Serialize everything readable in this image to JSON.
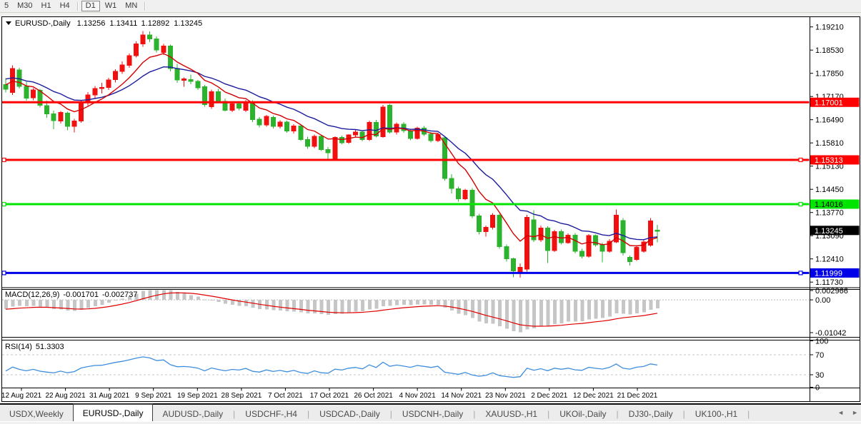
{
  "toolbar": {
    "groups": [
      [
        "5",
        "M30",
        "H1",
        "H4"
      ],
      [
        "D1",
        "W1",
        "MN"
      ]
    ],
    "active": "D1"
  },
  "header": {
    "dropdown_icon": "down-triangle",
    "symbol": "EURUSD-,Daily",
    "open": "1.13256",
    "high": "1.13411",
    "low": "1.12892",
    "close": "1.13245"
  },
  "chart_data": {
    "type": "candlestick",
    "title": "EURUSD-,Daily",
    "ylim": [
      1.11588,
      1.19497
    ],
    "up_color": "#F01010",
    "down_color": "#2DB22D",
    "ma_fast": {
      "period": 8,
      "color": "#D40000"
    },
    "ma_slow": {
      "period": 17,
      "color": "#1C1C9E"
    },
    "y_ticks": [
      "1.19210",
      "1.18530",
      "1.17850",
      "1.17170",
      "1.16490",
      "1.15810",
      "1.15130",
      "1.14450",
      "1.13770",
      "1.13090",
      "1.12410",
      "1.11730"
    ],
    "categories": [
      "12 Aug 2021",
      "22 Aug 2021",
      "31 Aug 2021",
      "9 Sep 2021",
      "19 Sep 2021",
      "28 Sep 2021",
      "7 Oct 2021",
      "17 Oct 2021",
      "26 Oct 2021",
      "4 Nov 2021",
      "14 Nov 2021",
      "23 Nov 2021",
      "2 Dec 2021",
      "12 Dec 2021",
      "21 Dec 2021"
    ],
    "hlines": [
      {
        "value": 1.17001,
        "label": "1.17001",
        "color": "#FE0000",
        "text_color": "#FFFFFF",
        "handles": false
      },
      {
        "value": 1.15313,
        "label": "1.15313",
        "color": "#FE0000",
        "text_color": "#FFFFFF",
        "handles": true
      },
      {
        "value": 1.14016,
        "label": "1.14016",
        "color": "#00E400",
        "text_color": "#000000",
        "handles": true
      },
      {
        "value": 1.11999,
        "label": "1.11999",
        "color": "#0000E8",
        "text_color": "#FFFFFF",
        "handles": true
      }
    ],
    "current_price": {
      "label": "1.13245",
      "value": 1.13245,
      "bg": "#000000",
      "text_color": "#FFFFFF"
    },
    "indicators": {
      "macd": {
        "name": "MACD(12,26,9)",
        "main_value": "-0.001701",
        "signal_value": "-0.002737",
        "axis_labels": [
          "0.002966",
          "0.00",
          "-0.01042"
        ],
        "axis_max": 0.002966,
        "axis_min": -0.01042,
        "bar_color": "#C6C6C6",
        "signal_color": "#E00000"
      },
      "rsi": {
        "name": "RSI(14)",
        "value": "51.3303",
        "axis_labels": [
          "100",
          "70",
          "30",
          "0"
        ],
        "levels": [
          70,
          30
        ],
        "line_color": "#3E8EDE"
      }
    },
    "ohlc": [
      [
        1.1752,
        1.1771,
        1.1729,
        1.1738
      ],
      [
        1.1729,
        1.1808,
        1.1722,
        1.1799
      ],
      [
        1.1795,
        1.1801,
        1.174,
        1.1747
      ],
      [
        1.1747,
        1.176,
        1.1705,
        1.1712
      ],
      [
        1.1713,
        1.1742,
        1.1706,
        1.1736
      ],
      [
        1.1735,
        1.1739,
        1.1685,
        1.1691
      ],
      [
        1.169,
        1.1705,
        1.1655,
        1.1666
      ],
      [
        1.1666,
        1.1676,
        1.1621,
        1.1646
      ],
      [
        1.1645,
        1.1675,
        1.1638,
        1.167
      ],
      [
        1.1668,
        1.1672,
        1.1618,
        1.1629
      ],
      [
        1.163,
        1.1652,
        1.1612,
        1.1645
      ],
      [
        1.1645,
        1.1705,
        1.164,
        1.1699
      ],
      [
        1.1699,
        1.173,
        1.169,
        1.1722
      ],
      [
        1.1722,
        1.1748,
        1.1711,
        1.174
      ],
      [
        1.174,
        1.1757,
        1.1726,
        1.1744
      ],
      [
        1.1744,
        1.1772,
        1.1736,
        1.1766
      ],
      [
        1.1766,
        1.1797,
        1.1758,
        1.1791
      ],
      [
        1.1791,
        1.182,
        1.1783,
        1.1809
      ],
      [
        1.1809,
        1.1843,
        1.1801,
        1.1837
      ],
      [
        1.1837,
        1.1879,
        1.1831,
        1.1871
      ],
      [
        1.1871,
        1.1909,
        1.1863,
        1.1897
      ],
      [
        1.1897,
        1.1908,
        1.1876,
        1.1886
      ],
      [
        1.1886,
        1.1893,
        1.1846,
        1.1853
      ],
      [
        1.1846,
        1.1871,
        1.1839,
        1.1865
      ],
      [
        1.1865,
        1.1869,
        1.1791,
        1.1799
      ],
      [
        1.1799,
        1.1813,
        1.1757,
        1.1765
      ],
      [
        1.1765,
        1.1773,
        1.1746,
        1.1769
      ],
      [
        1.1767,
        1.1781,
        1.1753,
        1.1761
      ],
      [
        1.1761,
        1.1766,
        1.1736,
        1.1743
      ],
      [
        1.1746,
        1.1751,
        1.1687,
        1.1693
      ],
      [
        1.1687,
        1.1737,
        1.1681,
        1.1731
      ],
      [
        1.1731,
        1.1739,
        1.1699,
        1.1703
      ],
      [
        1.1703,
        1.1711,
        1.1673,
        1.1677
      ],
      [
        1.1677,
        1.1701,
        1.1671,
        1.1695
      ],
      [
        1.1695,
        1.1701,
        1.1677,
        1.1683
      ],
      [
        1.1677,
        1.1707,
        1.1671,
        1.1702
      ],
      [
        1.1702,
        1.1706,
        1.1642,
        1.165
      ],
      [
        1.165,
        1.1657,
        1.1626,
        1.1634
      ],
      [
        1.1634,
        1.1663,
        1.1629,
        1.1659
      ],
      [
        1.1656,
        1.1661,
        1.1623,
        1.163
      ],
      [
        1.163,
        1.1647,
        1.1623,
        1.1642
      ],
      [
        1.1642,
        1.1646,
        1.1611,
        1.1616
      ],
      [
        1.1616,
        1.1636,
        1.1609,
        1.1631
      ],
      [
        1.1631,
        1.1634,
        1.1587,
        1.1591
      ],
      [
        1.1591,
        1.1599,
        1.1564,
        1.1571
      ],
      [
        1.1571,
        1.1605,
        1.1566,
        1.16
      ],
      [
        1.16,
        1.1603,
        1.1557,
        1.1562
      ],
      [
        1.1562,
        1.1569,
        1.1529,
        1.1552
      ],
      [
        1.1532,
        1.16,
        1.1528,
        1.1597
      ],
      [
        1.1597,
        1.1602,
        1.1577,
        1.1582
      ],
      [
        1.1582,
        1.1607,
        1.1578,
        1.1604
      ],
      [
        1.1604,
        1.1619,
        1.1598,
        1.1613
      ],
      [
        1.1613,
        1.1617,
        1.1586,
        1.1591
      ],
      [
        1.1591,
        1.1646,
        1.1587,
        1.1641
      ],
      [
        1.1641,
        1.1648,
        1.1597,
        1.1601
      ],
      [
        1.1599,
        1.1692,
        1.1596,
        1.1686
      ],
      [
        1.1691,
        1.1695,
        1.1609,
        1.1613
      ],
      [
        1.1613,
        1.1641,
        1.1606,
        1.1636
      ],
      [
        1.1636,
        1.1642,
        1.1611,
        1.1617
      ],
      [
        1.1617,
        1.1622,
        1.1589,
        1.1594
      ],
      [
        1.1594,
        1.1629,
        1.1591,
        1.1624
      ],
      [
        1.1624,
        1.1631,
        1.1601,
        1.1607
      ],
      [
        1.1607,
        1.1613,
        1.1583,
        1.1588
      ],
      [
        1.1588,
        1.1611,
        1.1584,
        1.1606
      ],
      [
        1.1596,
        1.1599,
        1.1471,
        1.1477
      ],
      [
        1.1477,
        1.1489,
        1.1433,
        1.1447
      ],
      [
        1.1447,
        1.1453,
        1.1409,
        1.1417
      ],
      [
        1.1417,
        1.1447,
        1.1413,
        1.1442
      ],
      [
        1.1442,
        1.1449,
        1.1361,
        1.1367
      ],
      [
        1.1367,
        1.1373,
        1.1313,
        1.1321
      ],
      [
        1.1321,
        1.1339,
        1.1306,
        1.1333
      ],
      [
        1.1333,
        1.1375,
        1.1327,
        1.1369
      ],
      [
        1.1369,
        1.1373,
        1.1271,
        1.1277
      ],
      [
        1.1277,
        1.1283,
        1.1233,
        1.1241
      ],
      [
        1.1241,
        1.1245,
        1.1187,
        1.1206
      ],
      [
        1.12,
        1.1228,
        1.1186,
        1.1216
      ],
      [
        1.1211,
        1.137,
        1.1204,
        1.1363
      ],
      [
        1.1356,
        1.1384,
        1.1291,
        1.1297
      ],
      [
        1.1297,
        1.1339,
        1.1291,
        1.1331
      ],
      [
        1.1331,
        1.1337,
        1.1229,
        1.1266
      ],
      [
        1.1266,
        1.1326,
        1.1261,
        1.1321
      ],
      [
        1.1321,
        1.1327,
        1.1283,
        1.1289
      ],
      [
        1.1289,
        1.1316,
        1.1285,
        1.1311
      ],
      [
        1.1311,
        1.1317,
        1.1257,
        1.1263
      ],
      [
        1.1263,
        1.1271,
        1.1243,
        1.1249
      ],
      [
        1.1249,
        1.1314,
        1.1245,
        1.1309
      ],
      [
        1.1309,
        1.1313,
        1.1277,
        1.1282
      ],
      [
        1.1282,
        1.1289,
        1.1231,
        1.1263
      ],
      [
        1.1263,
        1.1299,
        1.1259,
        1.1293
      ],
      [
        1.1291,
        1.1386,
        1.1287,
        1.1369
      ],
      [
        1.1353,
        1.1361,
        1.1251,
        1.1259
      ],
      [
        1.1246,
        1.1251,
        1.1222,
        1.1233
      ],
      [
        1.1239,
        1.1281,
        1.1235,
        1.1275
      ],
      [
        1.1263,
        1.1296,
        1.1259,
        1.1291
      ],
      [
        1.1281,
        1.1361,
        1.1277,
        1.1352
      ],
      [
        1.13256,
        1.13411,
        1.12892,
        1.13245
      ]
    ]
  },
  "tabs": {
    "items": [
      "USDX,Weekly",
      "EURUSD-,Daily",
      "AUDUSD-,Daily",
      "USDCHF-,H4",
      "USDCAD-,Daily",
      "USDCNH-,Daily",
      "XAUUSD-,H1",
      "UKOil-,Daily",
      "DJ30-,Daily",
      "UK100-,H1"
    ],
    "active": "EURUSD-,Daily",
    "nav_left": "◄",
    "nav_right": "►"
  }
}
